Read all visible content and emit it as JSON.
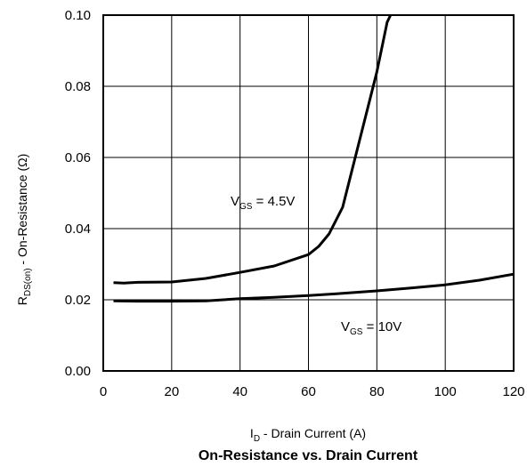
{
  "chart_data": {
    "type": "line",
    "title": "On-Resistance vs. Drain Current",
    "xlabel": {
      "main": "I",
      "sub": "D",
      "rest": " - Drain Current (A)"
    },
    "ylabel": {
      "main": "R",
      "sub": "DS(on)",
      "rest": " - On-Resistance (Ω)"
    },
    "xlim": [
      0,
      120
    ],
    "ylim": [
      0,
      0.1
    ],
    "x_ticks": [
      "0",
      "20",
      "40",
      "60",
      "80",
      "100",
      "120"
    ],
    "y_ticks": [
      "0.00",
      "0.02",
      "0.04",
      "0.06",
      "0.08",
      "0.10"
    ],
    "grid": true,
    "series": [
      {
        "name": {
          "main": "V",
          "sub": "GS",
          "rest": " = 4.5V"
        },
        "x": [
          3,
          6,
          10,
          20,
          30,
          40,
          50,
          60,
          63,
          66,
          70,
          75,
          80,
          83,
          84
        ],
        "y": [
          0.0248,
          0.0247,
          0.0249,
          0.025,
          0.026,
          0.0277,
          0.0295,
          0.0327,
          0.035,
          0.0385,
          0.046,
          0.065,
          0.084,
          0.098,
          0.1
        ]
      },
      {
        "name": {
          "main": "V",
          "sub": "GS",
          "rest": " = 10V"
        },
        "x": [
          3,
          10,
          20,
          30,
          40,
          50,
          60,
          70,
          80,
          90,
          100,
          110,
          120
        ],
        "y": [
          0.0197,
          0.0196,
          0.0196,
          0.0197,
          0.0203,
          0.0207,
          0.0212,
          0.0218,
          0.0225,
          0.0233,
          0.0242,
          0.0255,
          0.0272
        ]
      }
    ]
  }
}
